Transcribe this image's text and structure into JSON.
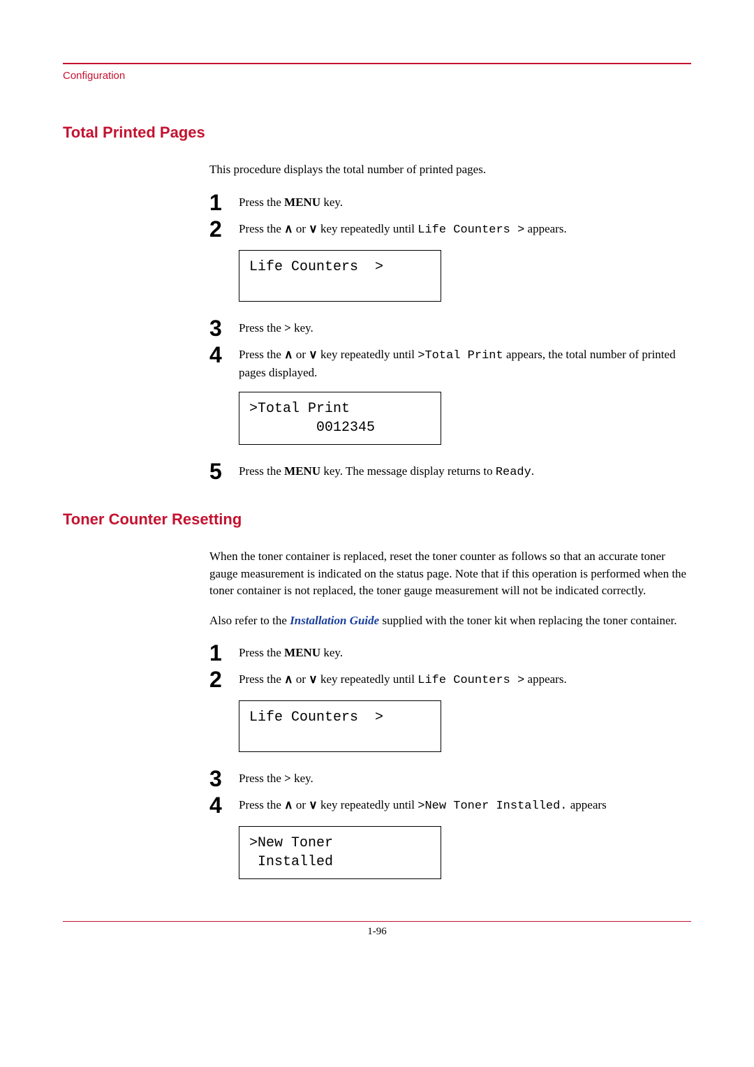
{
  "page": {
    "header_label": "Configuration",
    "page_number": "1-96",
    "colors": {
      "accent": "#c41230",
      "link": "#1a3f9c",
      "text": "#000000",
      "background": "#ffffff"
    }
  },
  "section1": {
    "heading": "Total Printed Pages",
    "intro": "This procedure displays the total number of printed pages.",
    "steps": {
      "s1": {
        "num": "1",
        "pre": "Press the ",
        "bold": "MENU",
        "post": " key."
      },
      "s2": {
        "num": "2",
        "pre": "Press the ",
        "mid": " key repeatedly until ",
        "mono": "Life Counters >",
        "post": " appears."
      },
      "lcd1": "Life Counters  >",
      "s3": {
        "num": "3",
        "pre": "Press the ",
        "bold": ">",
        "post": " key."
      },
      "s4": {
        "num": "4",
        "pre": "Press the ",
        "mid": " key repeatedly until ",
        "mono": ">Total Print",
        "post": " appears, the total number of printed pages displayed."
      },
      "lcd2": ">Total Print\n        0012345",
      "s5": {
        "num": "5",
        "pre": "Press the ",
        "bold": "MENU",
        "mid": " key. The message display returns to ",
        "mono": "Ready",
        "post": "."
      }
    }
  },
  "section2": {
    "heading": "Toner Counter Resetting",
    "intro": "When the toner container is replaced, reset the toner counter as follows so that an accurate toner gauge measurement is indicated on the status page. Note that if this operation is performed when the toner container is not replaced, the toner gauge measurement will not be indicated correctly.",
    "intro2_pre": "Also refer to the ",
    "intro2_link": "Installation Guide",
    "intro2_post": " supplied with the toner kit when replacing the toner container.",
    "steps": {
      "s1": {
        "num": "1",
        "pre": "Press the ",
        "bold": "MENU",
        "post": " key."
      },
      "s2": {
        "num": "2",
        "pre": "Press the ",
        "mid": " key repeatedly until ",
        "mono": "Life Counters >",
        "post": " appears."
      },
      "lcd1": "Life Counters  >",
      "s3": {
        "num": "3",
        "pre": "Press the ",
        "bold": ">",
        "post": " key."
      },
      "s4": {
        "num": "4",
        "pre": "Press the ",
        "mid": " key repeatedly until ",
        "mono": ">New Toner Installed.",
        "post": " appears"
      },
      "lcd2": ">New Toner\n Installed"
    }
  },
  "symbols": {
    "up": "∧",
    "down": "∨",
    "or": " or "
  }
}
